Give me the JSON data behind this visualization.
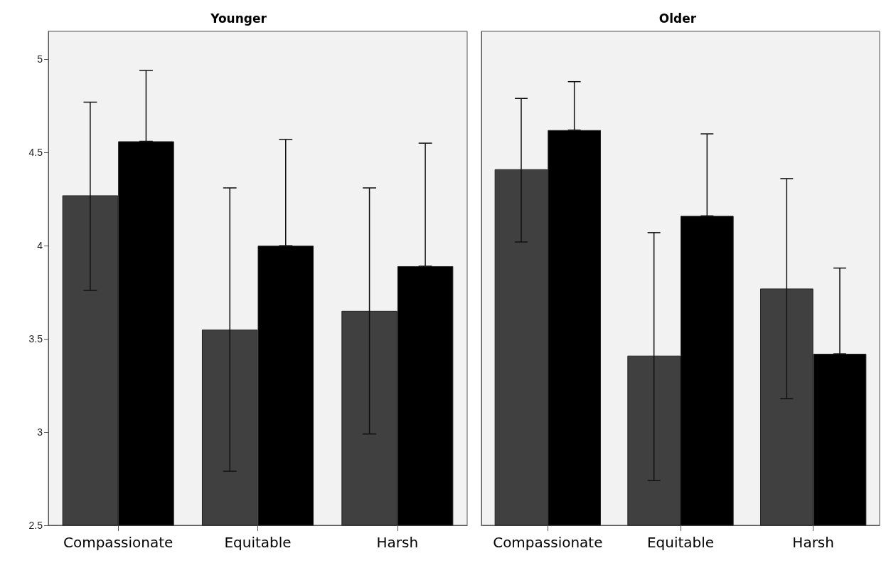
{
  "chart_data": [
    {
      "type": "bar",
      "title": "Younger",
      "categories": [
        "Compassionate",
        "Equitable",
        "Harsh"
      ],
      "ylim": [
        2.5,
        5.15
      ],
      "yticks": [
        2.5,
        3,
        3.5,
        4,
        4.5,
        5
      ],
      "grid": false,
      "series": [
        {
          "color": "#404040",
          "values": [
            4.27,
            3.55,
            3.65
          ],
          "errors": [
            [
              3.76,
              4.77
            ],
            [
              2.79,
              4.31
            ],
            [
              2.99,
              4.31
            ]
          ]
        },
        {
          "color": "#000000",
          "values": [
            4.56,
            4.0,
            3.89
          ],
          "errors": [
            [
              4.56,
              4.94
            ],
            [
              4.0,
              4.57
            ],
            [
              3.89,
              4.55
            ]
          ]
        }
      ]
    },
    {
      "type": "bar",
      "title": "Older",
      "categories": [
        "Compassionate",
        "Equitable",
        "Harsh"
      ],
      "ylim": [
        2.5,
        5.15
      ],
      "yticks": [
        2.5,
        3,
        3.5,
        4,
        4.5,
        5
      ],
      "grid": false,
      "tick_labels": "x",
      "series": [
        {
          "color": "#404040",
          "values": [
            4.41,
            3.41,
            3.77
          ],
          "errors": [
            [
              4.02,
              4.79
            ],
            [
              2.74,
              4.07
            ],
            [
              3.18,
              4.36
            ]
          ]
        },
        {
          "color": "#000000",
          "values": [
            4.62,
            4.16,
            3.42
          ],
          "errors": [
            [
              4.62,
              4.88
            ],
            [
              4.16,
              4.6
            ],
            [
              3.42,
              3.88
            ]
          ]
        }
      ]
    }
  ]
}
